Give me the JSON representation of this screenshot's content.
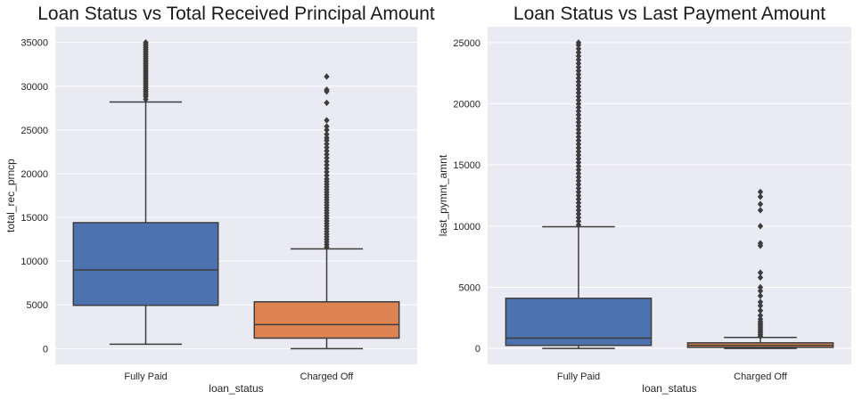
{
  "chart_data": [
    {
      "type": "box",
      "title": "Loan Status vs Total Received Principal Amount",
      "xlabel": "loan_status",
      "ylabel": "total_rec_prncp",
      "ylim": [
        -1800,
        36800
      ],
      "yticks": [
        0,
        5000,
        10000,
        15000,
        20000,
        25000,
        30000,
        35000
      ],
      "grid": true,
      "categories": [
        "Fully Paid",
        "Charged Off"
      ],
      "colors": [
        "#4c72b0",
        "#dd8452"
      ],
      "boxes": [
        {
          "category": "Fully Paid",
          "whisker_low": 500,
          "q1": 4950,
          "median": 9000,
          "q3": 14400,
          "whisker_high": 28200,
          "outliers": [
            28500,
            28800,
            29000,
            29200,
            29400,
            29600,
            29800,
            30000,
            30200,
            30400,
            30600,
            30800,
            31000,
            31200,
            31400,
            31600,
            31800,
            32000,
            32200,
            32400,
            32600,
            32800,
            33000,
            33200,
            33400,
            33600,
            33800,
            34000,
            34200,
            34400,
            34600,
            34800,
            35000
          ]
        },
        {
          "category": "Charged Off",
          "whisker_low": 0,
          "q1": 1200,
          "median": 2750,
          "q3": 5350,
          "whisker_high": 11400,
          "outliers": [
            11600,
            11900,
            12200,
            12500,
            12800,
            13100,
            13400,
            13700,
            14000,
            14300,
            14600,
            14900,
            15200,
            15500,
            15800,
            16100,
            16400,
            16700,
            17000,
            17300,
            17600,
            17900,
            18200,
            18500,
            18800,
            19100,
            19400,
            19800,
            20200,
            20600,
            21000,
            21400,
            21800,
            22200,
            22600,
            23000,
            23400,
            23800,
            24100,
            24500,
            25000,
            25400,
            26100,
            28100,
            29400,
            29600,
            31100
          ]
        }
      ]
    },
    {
      "type": "box",
      "title": "Loan Status vs Last Payment Amount",
      "xlabel": "loan_status",
      "ylabel": "last_pymnt_amnt",
      "ylim": [
        -1300,
        26300
      ],
      "yticks": [
        0,
        5000,
        10000,
        15000,
        20000,
        25000
      ],
      "grid": true,
      "categories": [
        "Fully Paid",
        "Charged Off"
      ],
      "colors": [
        "#4c72b0",
        "#dd8452"
      ],
      "boxes": [
        {
          "category": "Fully Paid",
          "whisker_low": 0,
          "q1": 250,
          "median": 850,
          "q3": 4100,
          "whisker_high": 9950,
          "outliers": [
            10100,
            10400,
            10700,
            11000,
            11300,
            11600,
            11900,
            12200,
            12500,
            12800,
            13100,
            13400,
            13700,
            14000,
            14300,
            14600,
            14900,
            15200,
            15500,
            15800,
            16100,
            16400,
            16700,
            17000,
            17300,
            17600,
            17900,
            18200,
            18500,
            18800,
            19100,
            19400,
            19700,
            20000,
            20300,
            20600,
            20900,
            21200,
            21500,
            21800,
            22100,
            22400,
            22700,
            23000,
            23300,
            23600,
            23900,
            24200,
            24500,
            24800,
            25000
          ]
        },
        {
          "category": "Charged Off",
          "whisker_low": 0,
          "q1": 90,
          "median": 260,
          "q3": 460,
          "whisker_high": 900,
          "outliers": [
            1000,
            1150,
            1300,
            1450,
            1600,
            1750,
            1900,
            2050,
            2200,
            2400,
            2700,
            3100,
            3500,
            3800,
            4300,
            4700,
            5000,
            5800,
            6200,
            8400,
            8600,
            10000,
            11300,
            11800,
            12400,
            12800
          ]
        }
      ]
    }
  ]
}
